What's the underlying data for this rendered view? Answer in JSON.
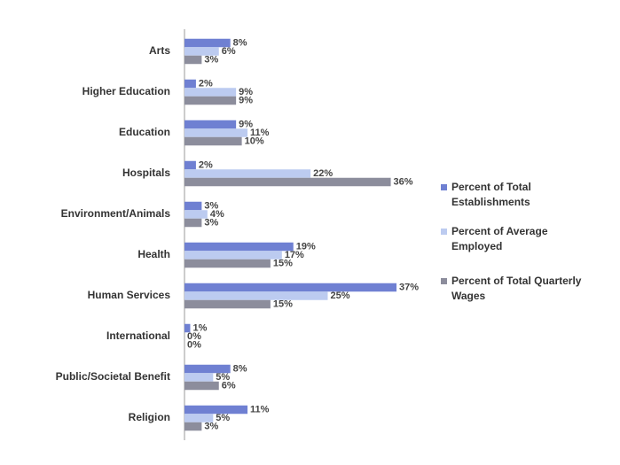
{
  "chart_data": {
    "type": "bar",
    "orientation": "horizontal",
    "categories": [
      "Arts",
      "Higher Education",
      "Education",
      "Hospitals",
      "Environment/Animals",
      "Health",
      "Human Services",
      "International",
      "Public/Societal Benefit",
      "Religion"
    ],
    "series": [
      {
        "name": "Percent of Total Establishments",
        "color": "#6f80d2",
        "values": [
          8,
          2,
          9,
          2,
          3,
          19,
          37,
          1,
          8,
          11
        ],
        "value_labels": [
          "8%",
          "2%",
          "9%",
          "2%",
          "3%",
          "19%",
          "37%",
          "1%",
          "8%",
          "11%"
        ]
      },
      {
        "name": "Percent of Average Employed",
        "color": "#bccbf0",
        "values": [
          6,
          9,
          11,
          22,
          4,
          17,
          25,
          0,
          5,
          5
        ],
        "value_labels": [
          "6%",
          "9%",
          "11%",
          "22%",
          "4%",
          "17%",
          "25%",
          "0%",
          "5%",
          "5%"
        ]
      },
      {
        "name": "Percent of Total Quarterly Wages",
        "color": "#8c8d9c",
        "values": [
          3,
          9,
          10,
          36,
          3,
          15,
          15,
          0,
          6,
          3
        ],
        "value_labels": [
          "3%",
          "9%",
          "10%",
          "36%",
          "3%",
          "15%",
          "15%",
          "0%",
          "6%",
          "3%"
        ]
      }
    ],
    "legend": "right"
  }
}
